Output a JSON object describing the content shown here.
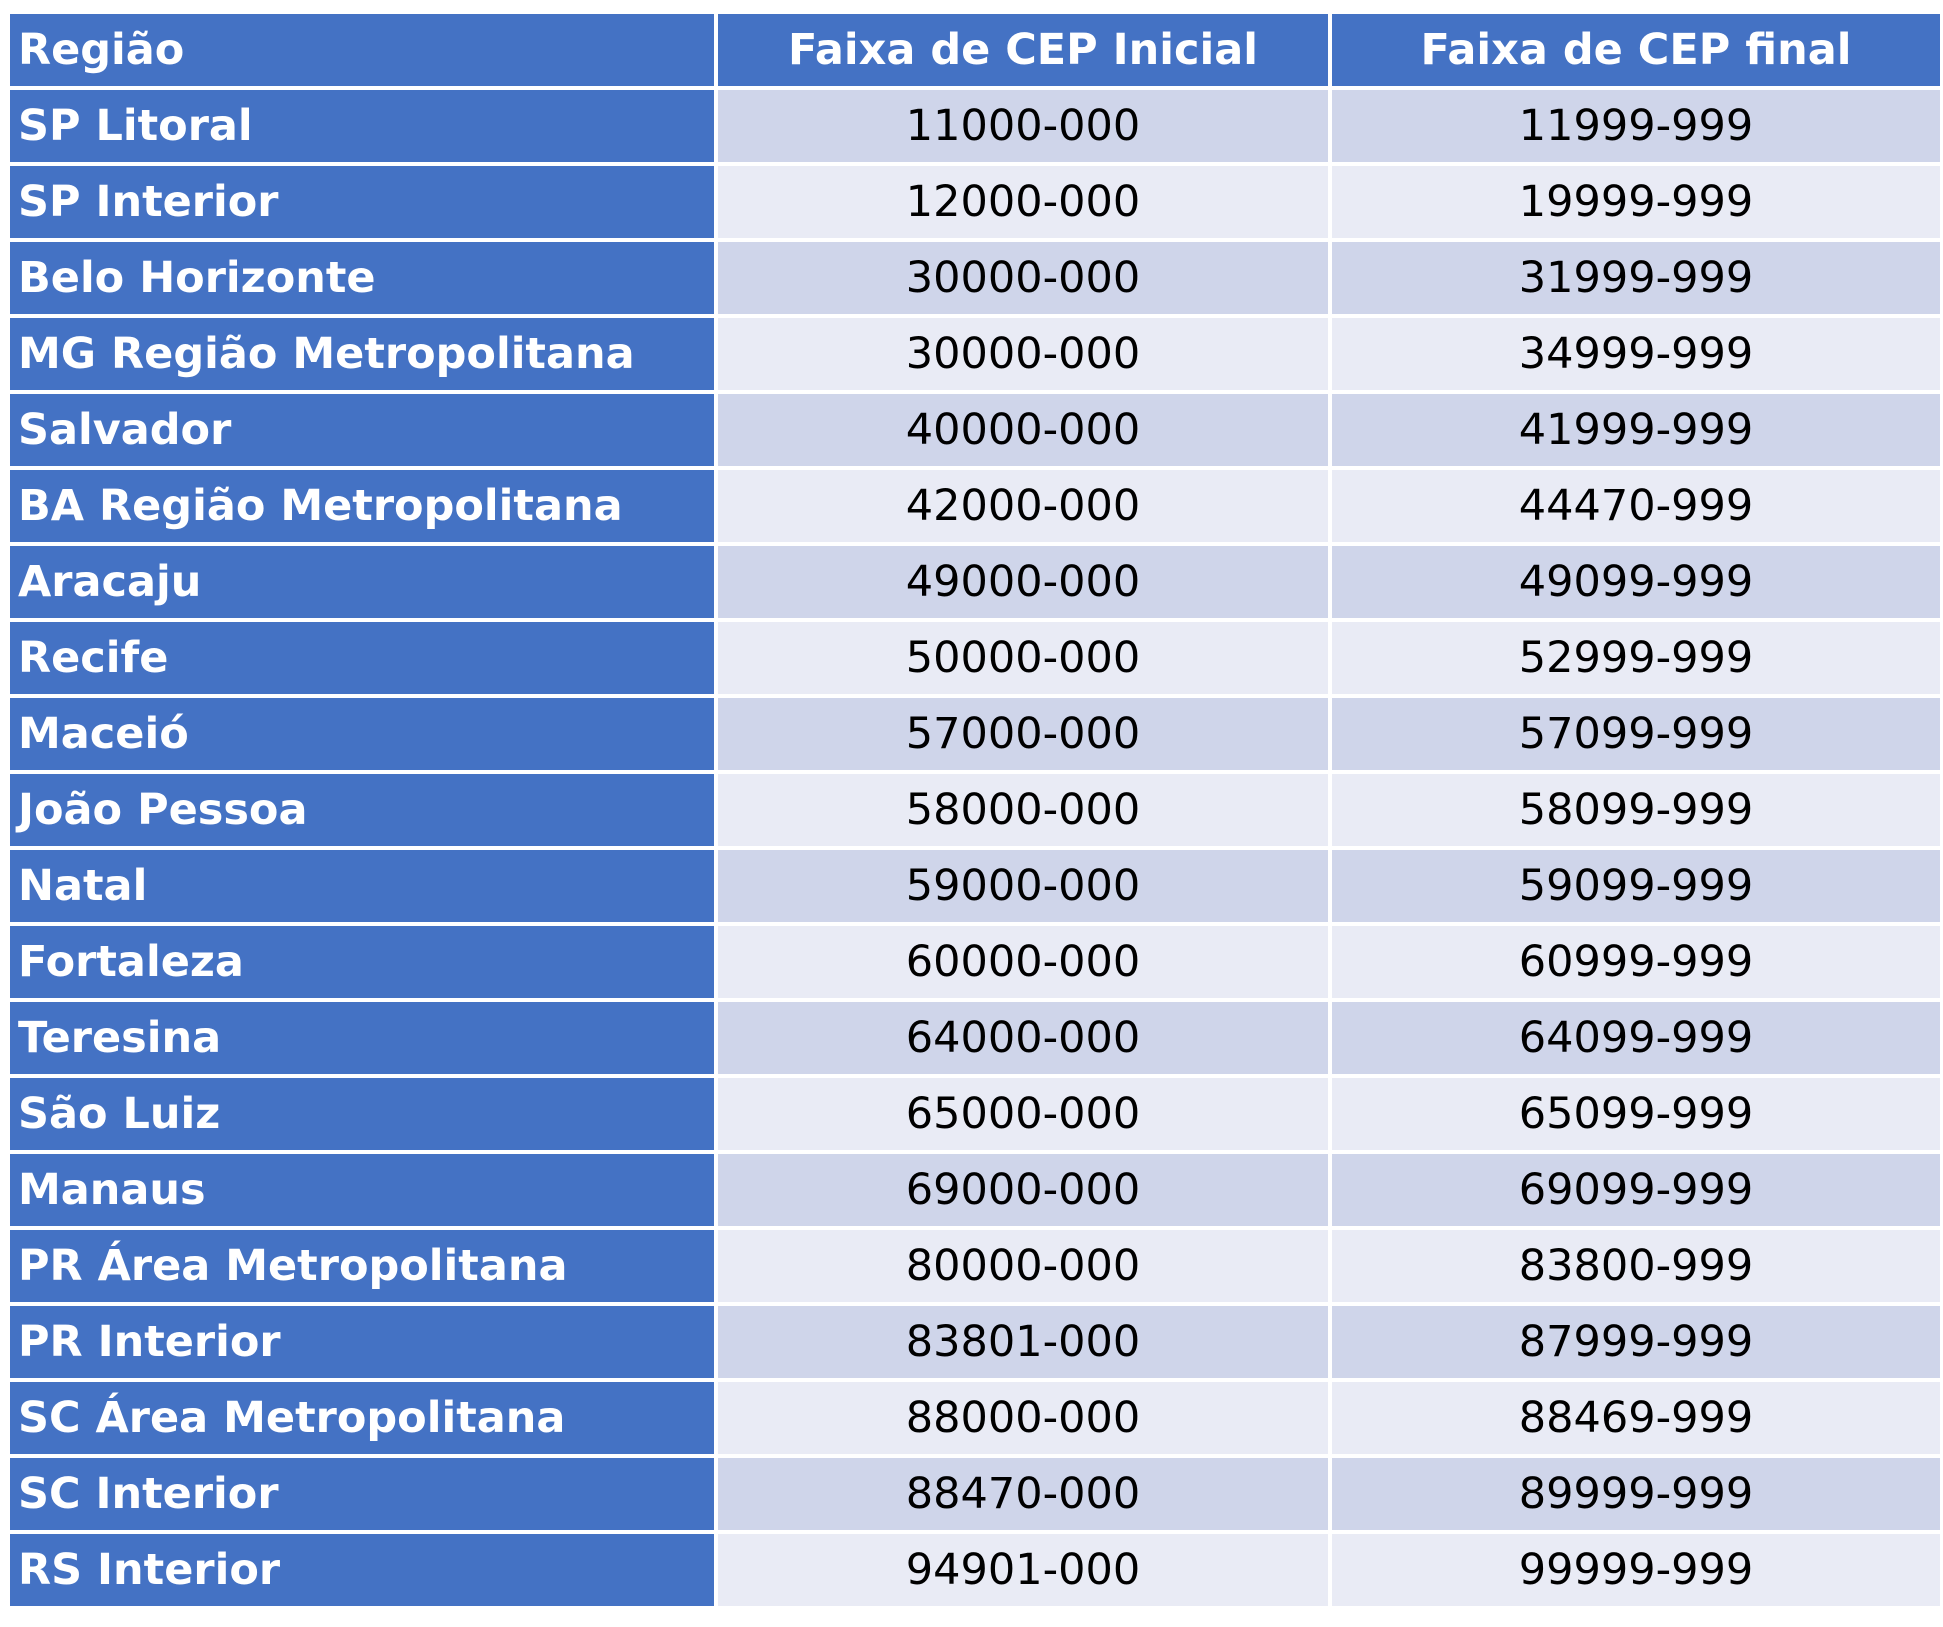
{
  "colors": {
    "header_bg": "#4472c4",
    "region_bg": "#4472c4",
    "band_dark": "#cfd5ea",
    "band_light": "#e9ebf5"
  },
  "table": {
    "headers": [
      "Região",
      "Faixa de CEP Inicial",
      "Faixa de CEP final"
    ],
    "rows": [
      [
        "SP Litoral",
        "11000-000",
        "11999-999"
      ],
      [
        "SP Interior",
        "12000-000",
        "19999-999"
      ],
      [
        "Belo Horizonte",
        "30000-000",
        "31999-999"
      ],
      [
        "MG Região Metropolitana",
        "30000-000",
        "34999-999"
      ],
      [
        "Salvador",
        "40000-000",
        "41999-999"
      ],
      [
        "BA Região Metropolitana",
        "42000-000",
        "44470-999"
      ],
      [
        "Aracaju",
        "49000-000",
        "49099-999"
      ],
      [
        "Recife",
        "50000-000",
        "52999-999"
      ],
      [
        "Maceió",
        "57000-000",
        "57099-999"
      ],
      [
        "João Pessoa",
        "58000-000",
        "58099-999"
      ],
      [
        "Natal",
        "59000-000",
        "59099-999"
      ],
      [
        "Fortaleza",
        "60000-000",
        "60999-999"
      ],
      [
        "Teresina",
        "64000-000",
        "64099-999"
      ],
      [
        "São Luiz",
        "65000-000",
        "65099-999"
      ],
      [
        "Manaus",
        "69000-000",
        "69099-999"
      ],
      [
        "PR Área Metropolitana",
        "80000-000",
        "83800-999"
      ],
      [
        "PR Interior",
        "83801-000",
        "87999-999"
      ],
      [
        "SC Área Metropolitana",
        "88000-000",
        "88469-999"
      ],
      [
        "SC Interior",
        "88470-000",
        "89999-999"
      ],
      [
        "RS Interior",
        "94901-000",
        "99999-999"
      ]
    ]
  }
}
